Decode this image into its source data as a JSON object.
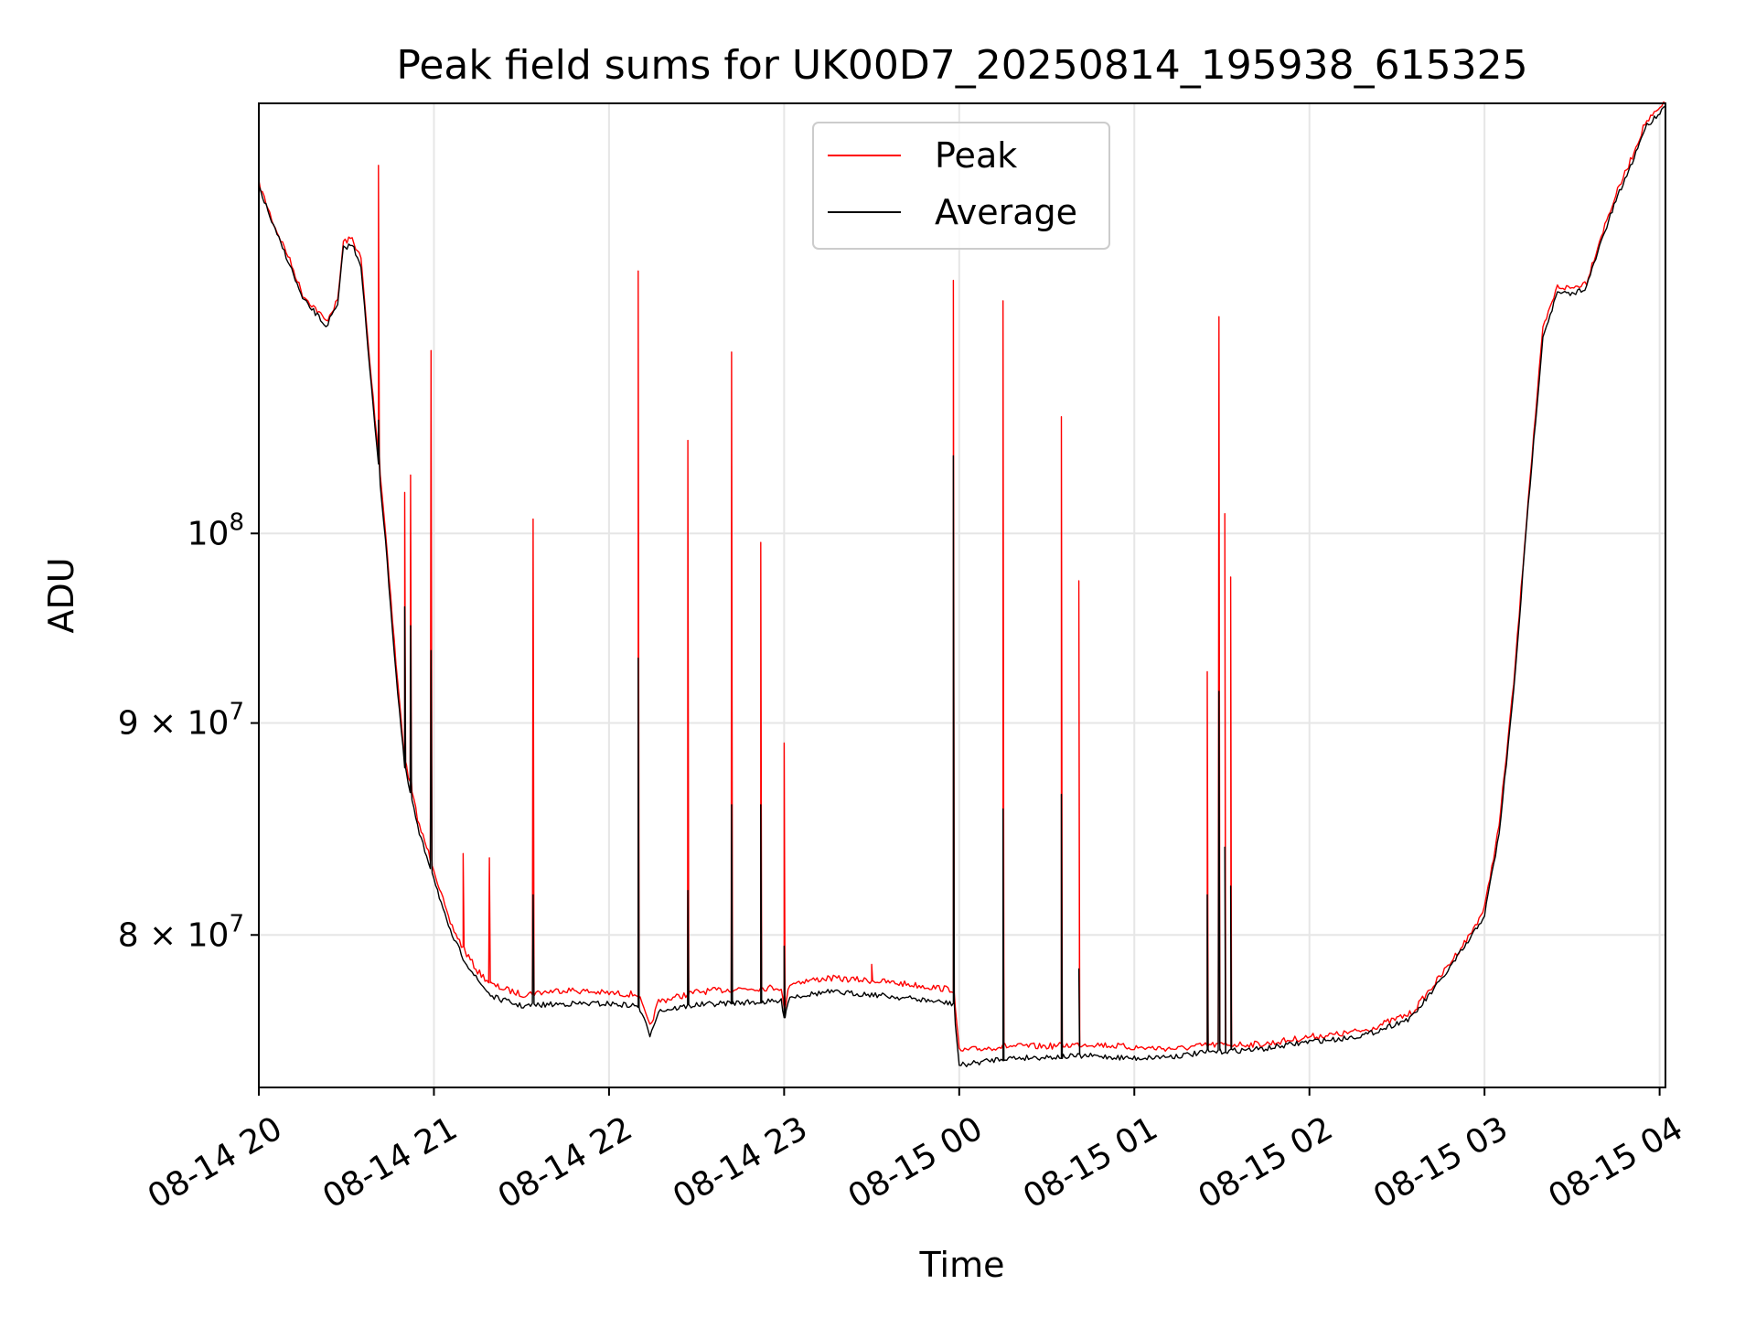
{
  "chart_data": {
    "type": "line",
    "title": "Peak field sums for UK00D7_20250814_195938_615325",
    "xlabel": "Time",
    "ylabel": "ADU",
    "y_scale": "log",
    "ylim": [
      73500000,
      127000000
    ],
    "xlim": [
      "08-14 20:00",
      "08-15 04:02"
    ],
    "x_ticks": [
      "08-14 20",
      "08-14 21",
      "08-14 22",
      "08-14 23",
      "08-15 00",
      "08-15 01",
      "08-15 02",
      "08-15 03",
      "08-15 04"
    ],
    "y_ticks": [
      {
        "value": 80000000,
        "mantissa": "8",
        "exp": "7"
      },
      {
        "value": 90000000,
        "mantissa": "9",
        "exp": "7"
      },
      {
        "value": 100000000,
        "mantissa": "",
        "exp": "8"
      }
    ],
    "grid": true,
    "legend_position": "top-center",
    "series": [
      {
        "name": "Peak",
        "color": "#ff0000",
        "points": [
          [
            "08-14 20:00",
            121500000
          ],
          [
            "08-14 20:05",
            118800000
          ],
          [
            "08-14 20:10",
            116700000
          ],
          [
            "08-14 20:15",
            114200000
          ],
          [
            "08-14 20:20",
            113200000
          ],
          [
            "08-14 20:23",
            112500000
          ],
          [
            "08-14 20:27",
            113800000
          ],
          [
            "08-14 20:29",
            117600000
          ],
          [
            "08-14 20:32",
            117800000
          ],
          [
            "08-14 20:35",
            116500000
          ],
          [
            "08-14 20:38",
            110000000
          ],
          [
            "08-14 20:41",
            104500000
          ],
          [
            "08-14 20:44",
            99000000
          ],
          [
            "08-14 20:47",
            93000000
          ],
          [
            "08-14 20:50",
            88200000
          ],
          [
            "08-14 20:55",
            85000000
          ],
          [
            "08-14 21:00",
            83000000
          ],
          [
            "08-14 21:05",
            80700000
          ],
          [
            "08-14 21:10",
            79400000
          ],
          [
            "08-14 21:15",
            78400000
          ],
          [
            "08-14 21:20",
            77800000
          ],
          [
            "08-14 21:30",
            77400000
          ],
          [
            "08-14 21:45",
            77600000
          ],
          [
            "08-14 22:00",
            77450000
          ],
          [
            "08-14 22:10",
            77400000
          ],
          [
            "08-14 22:14",
            76000000
          ],
          [
            "08-14 22:17",
            77100000
          ],
          [
            "08-14 22:30",
            77500000
          ],
          [
            "08-14 22:45",
            77650000
          ],
          [
            "08-14 22:59",
            77700000
          ],
          [
            "08-14 23:00",
            76700000
          ],
          [
            "08-14 23:02",
            77900000
          ],
          [
            "08-14 23:15",
            78100000
          ],
          [
            "08-14 23:30",
            78000000
          ],
          [
            "08-14 23:45",
            77800000
          ],
          [
            "08-14 23:58",
            77600000
          ],
          [
            "08-15 00:00",
            75000000
          ],
          [
            "08-15 00:15",
            75200000
          ],
          [
            "08-15 00:30",
            75200000
          ],
          [
            "08-15 00:45",
            75300000
          ],
          [
            "08-15 01:00",
            75150000
          ],
          [
            "08-15 01:15",
            75100000
          ],
          [
            "08-15 01:25",
            75250000
          ],
          [
            "08-15 01:45",
            75300000
          ],
          [
            "08-15 02:00",
            75600000
          ],
          [
            "08-15 02:10",
            75700000
          ],
          [
            "08-15 02:20",
            75900000
          ],
          [
            "08-15 02:35",
            76600000
          ],
          [
            "08-15 02:45",
            78200000
          ],
          [
            "08-15 02:55",
            80000000
          ],
          [
            "08-15 03:00",
            81200000
          ],
          [
            "08-15 03:05",
            85000000
          ],
          [
            "08-15 03:10",
            92000000
          ],
          [
            "08-15 03:15",
            102000000
          ],
          [
            "08-15 03:20",
            112000000
          ],
          [
            "08-15 03:25",
            114700000
          ],
          [
            "08-15 03:30",
            114600000
          ],
          [
            "08-15 03:35",
            115000000
          ],
          [
            "08-15 03:40",
            118000000
          ],
          [
            "08-15 03:45",
            120700000
          ],
          [
            "08-15 03:50",
            123000000
          ],
          [
            "08-15 03:55",
            125600000
          ],
          [
            "08-15 04:02",
            127000000
          ]
        ],
        "spikes": [
          [
            "08-14 20:41",
            122700000
          ],
          [
            "08-14 20:50",
            102300000
          ],
          [
            "08-14 20:52",
            103300000
          ],
          [
            "08-14 20:59",
            110700000
          ],
          [
            "08-14 21:10",
            83700000
          ],
          [
            "08-14 21:19",
            83500000
          ],
          [
            "08-14 21:34",
            100800000
          ],
          [
            "08-14 22:10",
            115700000
          ],
          [
            "08-14 22:27",
            105300000
          ],
          [
            "08-14 22:42",
            110600000
          ],
          [
            "08-14 22:52",
            99500000
          ],
          [
            "08-14 23:00",
            89000000
          ],
          [
            "08-14 23:30",
            78700000
          ],
          [
            "08-14 23:58",
            115100000
          ],
          [
            "08-15 00:15",
            113800000
          ],
          [
            "08-15 00:35",
            106700000
          ],
          [
            "08-15 00:41",
            97400000
          ],
          [
            "08-15 01:25",
            92600000
          ],
          [
            "08-15 01:29",
            112800000
          ],
          [
            "08-15 01:31",
            101100000
          ],
          [
            "08-15 01:33",
            97600000
          ]
        ]
      },
      {
        "name": "Average",
        "color": "#000000",
        "points": [
          [
            "08-14 20:00",
            121300000
          ],
          [
            "08-14 20:05",
            118600000
          ],
          [
            "08-14 20:10",
            116400000
          ],
          [
            "08-14 20:15",
            113900000
          ],
          [
            "08-14 20:20",
            112900000
          ],
          [
            "08-14 20:23",
            112200000
          ],
          [
            "08-14 20:27",
            113500000
          ],
          [
            "08-14 20:29",
            117200000
          ],
          [
            "08-14 20:32",
            117400000
          ],
          [
            "08-14 20:35",
            116100000
          ],
          [
            "08-14 20:38",
            109500000
          ],
          [
            "08-14 20:41",
            104000000
          ],
          [
            "08-14 20:44",
            98400000
          ],
          [
            "08-14 20:47",
            92500000
          ],
          [
            "08-14 20:50",
            87800000
          ],
          [
            "08-14 20:55",
            84600000
          ],
          [
            "08-14 21:00",
            82600000
          ],
          [
            "08-14 21:05",
            80300000
          ],
          [
            "08-14 21:10",
            79000000
          ],
          [
            "08-14 21:15",
            78000000
          ],
          [
            "08-14 21:20",
            77300000
          ],
          [
            "08-14 21:30",
            76900000
          ],
          [
            "08-14 21:45",
            77000000
          ],
          [
            "08-14 22:00",
            77000000
          ],
          [
            "08-14 22:10",
            76900000
          ],
          [
            "08-14 22:14",
            75700000
          ],
          [
            "08-14 22:17",
            76700000
          ],
          [
            "08-14 22:30",
            76950000
          ],
          [
            "08-14 22:45",
            77050000
          ],
          [
            "08-14 22:59",
            77100000
          ],
          [
            "08-14 23:00",
            76500000
          ],
          [
            "08-14 23:02",
            77300000
          ],
          [
            "08-14 23:15",
            77500000
          ],
          [
            "08-14 23:30",
            77400000
          ],
          [
            "08-14 23:45",
            77200000
          ],
          [
            "08-14 23:58",
            77000000
          ],
          [
            "08-15 00:00",
            74400000
          ],
          [
            "08-15 00:15",
            74700000
          ],
          [
            "08-15 00:30",
            74750000
          ],
          [
            "08-15 00:45",
            74800000
          ],
          [
            "08-15 01:00",
            74700000
          ],
          [
            "08-15 01:15",
            74800000
          ],
          [
            "08-15 01:25",
            74950000
          ],
          [
            "08-15 01:45",
            75100000
          ],
          [
            "08-15 02:00",
            75400000
          ],
          [
            "08-15 02:10",
            75500000
          ],
          [
            "08-15 02:20",
            75700000
          ],
          [
            "08-15 02:35",
            76400000
          ],
          [
            "08-15 02:45",
            78000000
          ],
          [
            "08-15 02:55",
            79800000
          ],
          [
            "08-15 03:00",
            80900000
          ],
          [
            "08-15 03:05",
            84600000
          ],
          [
            "08-15 03:10",
            91600000
          ],
          [
            "08-15 03:15",
            101600000
          ],
          [
            "08-15 03:20",
            111600000
          ],
          [
            "08-15 03:25",
            114300000
          ],
          [
            "08-15 03:30",
            114200000
          ],
          [
            "08-15 03:35",
            114700000
          ],
          [
            "08-15 03:40",
            117600000
          ],
          [
            "08-15 03:45",
            120300000
          ],
          [
            "08-15 03:50",
            122600000
          ],
          [
            "08-15 03:55",
            125300000
          ],
          [
            "08-15 04:02",
            126800000
          ]
        ],
        "spikes": [
          [
            "08-14 20:41",
            106500000
          ],
          [
            "08-14 20:50",
            96000000
          ],
          [
            "08-14 20:52",
            95000000
          ],
          [
            "08-14 20:59",
            93700000
          ],
          [
            "08-14 21:34",
            81800000
          ],
          [
            "08-14 22:10",
            93300000
          ],
          [
            "08-14 22:27",
            82000000
          ],
          [
            "08-14 22:42",
            86000000
          ],
          [
            "08-14 22:52",
            86000000
          ],
          [
            "08-14 23:00",
            79500000
          ],
          [
            "08-14 23:58",
            104400000
          ],
          [
            "08-15 00:15",
            85800000
          ],
          [
            "08-15 00:35",
            86500000
          ],
          [
            "08-15 00:41",
            78500000
          ],
          [
            "08-15 01:25",
            81800000
          ],
          [
            "08-15 01:29",
            91600000
          ],
          [
            "08-15 01:31",
            84000000
          ],
          [
            "08-15 01:33",
            82200000
          ]
        ]
      }
    ]
  }
}
